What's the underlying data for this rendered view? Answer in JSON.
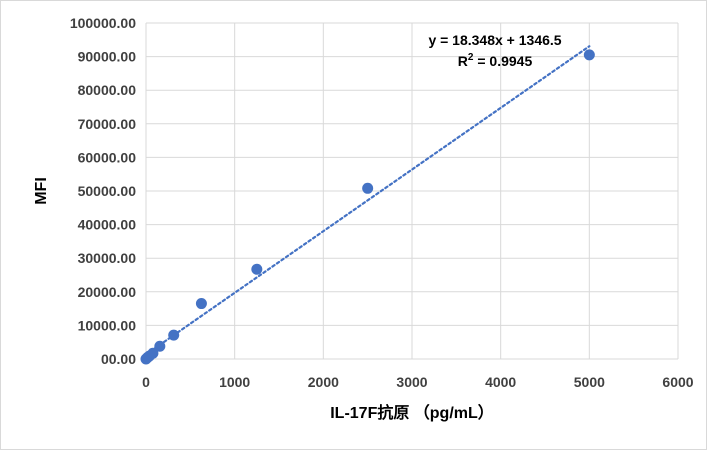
{
  "chart_data": {
    "type": "scatter",
    "xlabel": "IL-17F抗原 （pg/mL）",
    "ylabel": "MFI",
    "xlim": [
      0,
      6000
    ],
    "ylim": [
      0,
      100000
    ],
    "x_ticks": [
      "0",
      "1000",
      "2000",
      "3000",
      "4000",
      "5000",
      "6000"
    ],
    "y_ticks": [
      "00.00",
      "10000.00",
      "20000.00",
      "30000.00",
      "40000.00",
      "50000.00",
      "60000.00",
      "70000.00",
      "80000.00",
      "90000.00",
      "100000.00"
    ],
    "grid": true,
    "series": [
      {
        "points": [
          {
            "x": 0,
            "y": 0
          },
          {
            "x": 19.5,
            "y": 500
          },
          {
            "x": 39,
            "y": 900
          },
          {
            "x": 78,
            "y": 1700
          },
          {
            "x": 156,
            "y": 3800
          },
          {
            "x": 312.5,
            "y": 7100
          },
          {
            "x": 625,
            "y": 16500
          },
          {
            "x": 1250,
            "y": 26700
          },
          {
            "x": 2500,
            "y": 50800
          },
          {
            "x": 5000,
            "y": 90500
          }
        ],
        "color": "#4472c4"
      }
    ],
    "trendline": {
      "type": "linear",
      "slope": 18.348,
      "intercept": 1346.5,
      "x_range": [
        0,
        5000
      ],
      "style": "dotted",
      "color": "#4472c4",
      "equation_label": "y = 18.348x + 1346.5",
      "r2_prefix": "R",
      "r2_sup": "2",
      "r2_value": " = 0.9945"
    }
  }
}
